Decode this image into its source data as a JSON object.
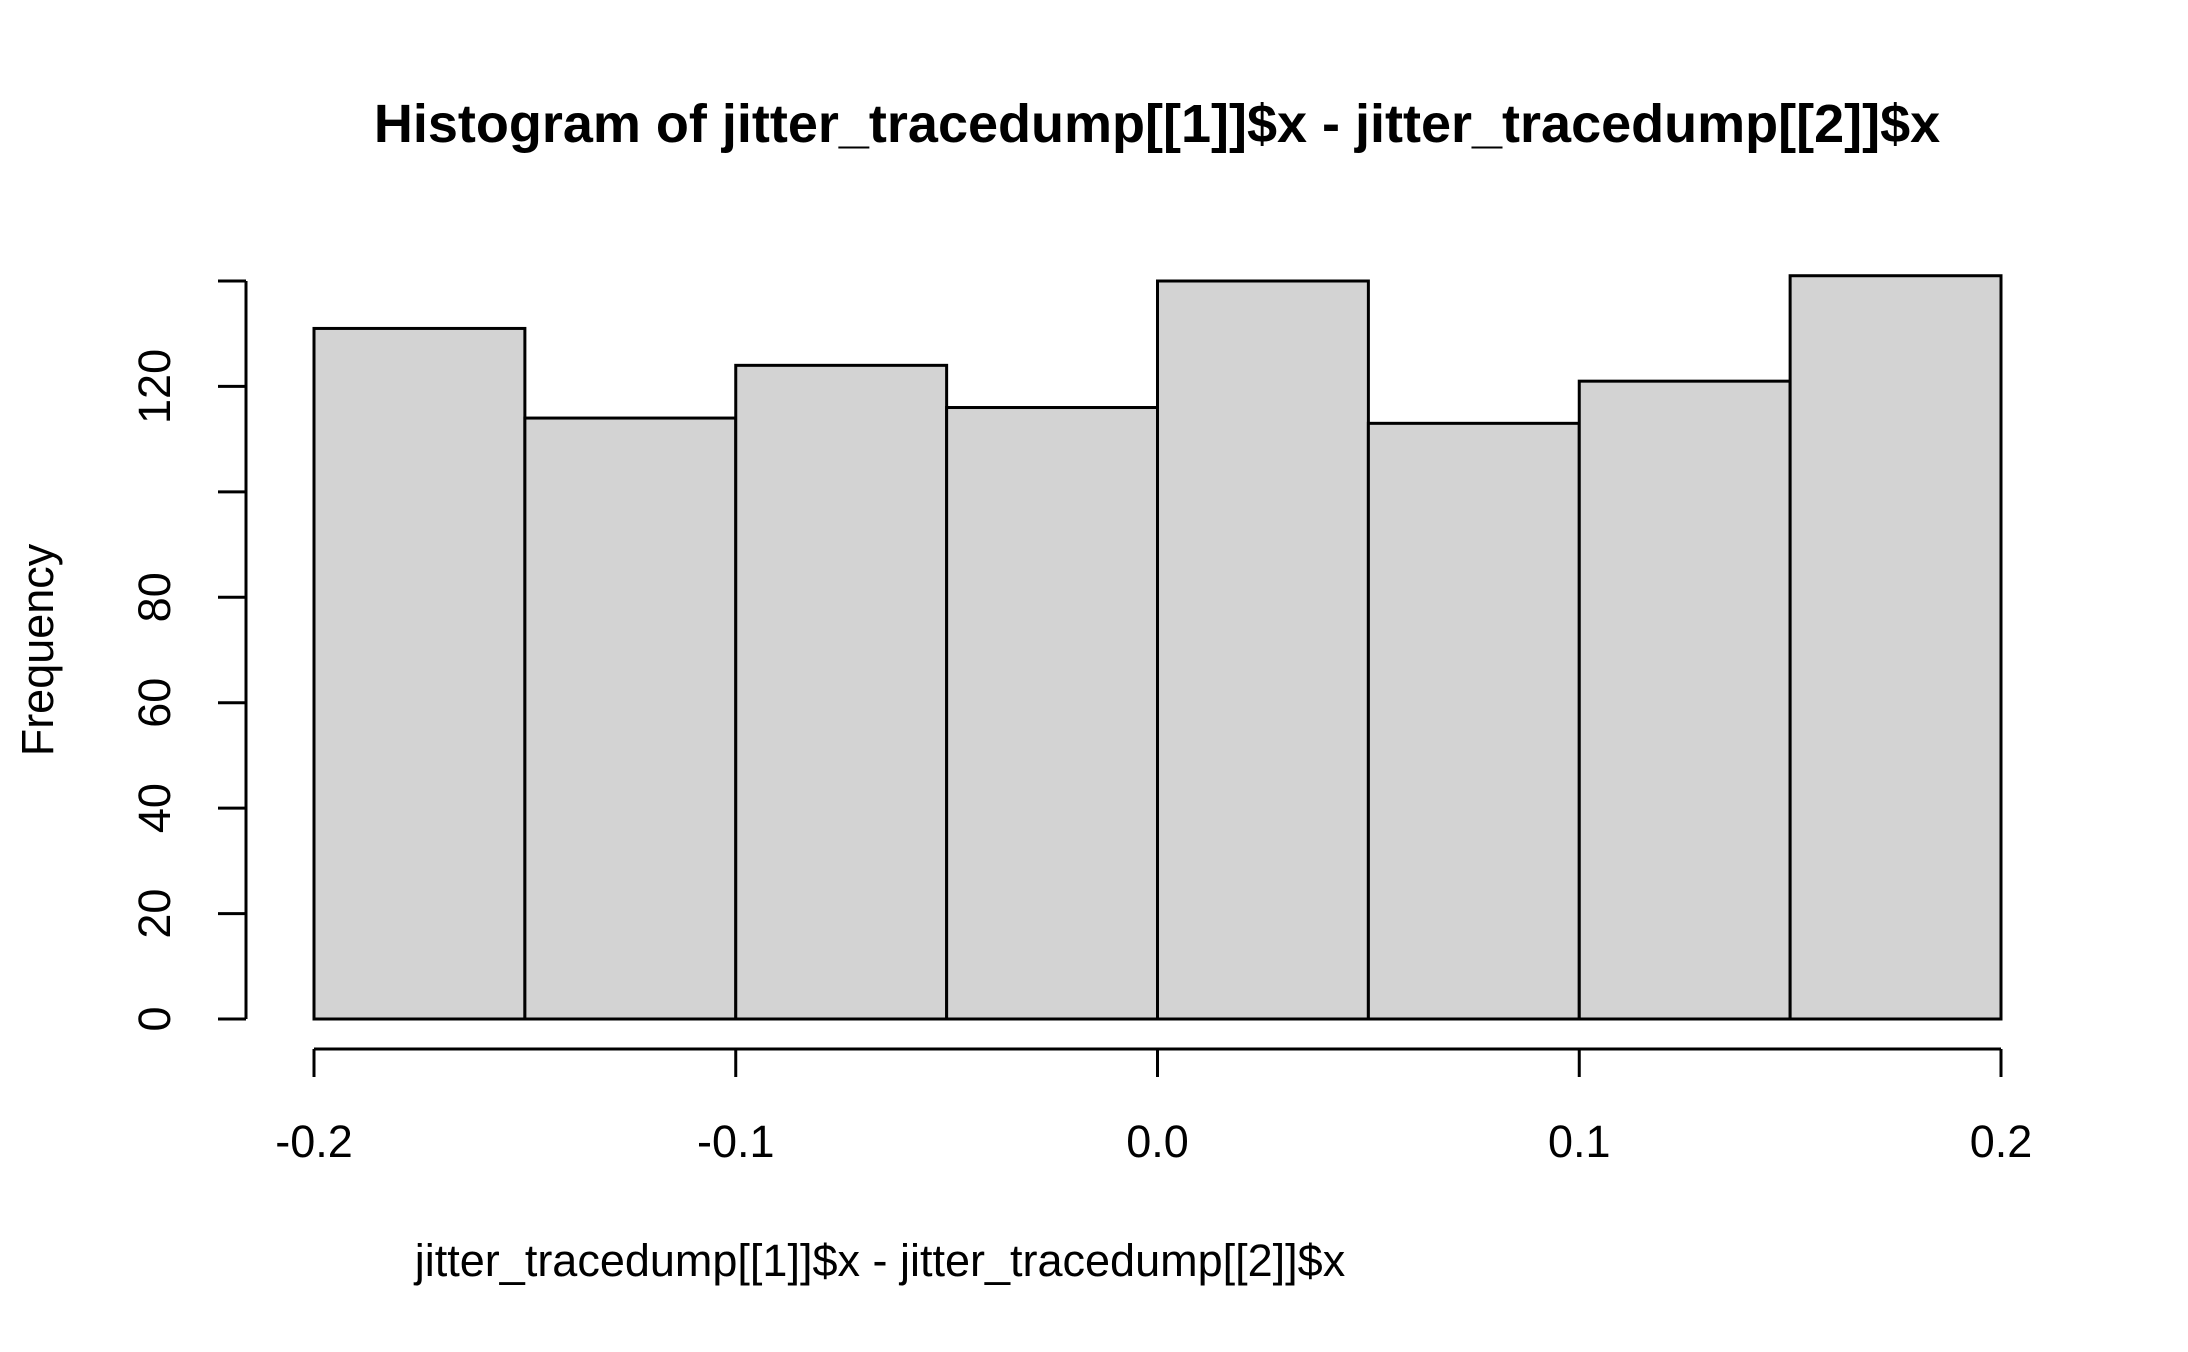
{
  "chart_data": {
    "type": "bar",
    "title": "Histogram of jitter_tracedump[[1]]$x - jitter_tracedump[[2]]$x",
    "xlabel": "jitter_tracedump[[1]]$x - jitter_tracedump[[2]]$x",
    "ylabel": "Frequency",
    "bins": [
      {
        "start": -0.2,
        "end": -0.15,
        "count": 131
      },
      {
        "start": -0.15,
        "end": -0.1,
        "count": 114
      },
      {
        "start": -0.1,
        "end": -0.05,
        "count": 124
      },
      {
        "start": -0.05,
        "end": 0.0,
        "count": 116
      },
      {
        "start": 0.0,
        "end": 0.05,
        "count": 140
      },
      {
        "start": 0.05,
        "end": 0.1,
        "count": 113
      },
      {
        "start": 0.1,
        "end": 0.15,
        "count": 121
      },
      {
        "start": 0.15,
        "end": 0.2,
        "count": 141
      }
    ],
    "xlim": [
      -0.2,
      0.2
    ],
    "ylim": [
      0,
      140
    ],
    "x_ticks": [
      -0.2,
      -0.1,
      0.0,
      0.1,
      0.2
    ],
    "x_tick_labels": [
      "-0.2",
      "-0.1",
      "0.0",
      "0.1",
      "0.2"
    ],
    "y_ticks": [
      0,
      20,
      40,
      60,
      80,
      100,
      120,
      140
    ],
    "y_tick_labels": [
      "0",
      "20",
      "40",
      "60",
      "80",
      "",
      "120",
      ""
    ],
    "grid": false,
    "bar_fill": "#d3d3d3",
    "bar_stroke": "#000000"
  }
}
